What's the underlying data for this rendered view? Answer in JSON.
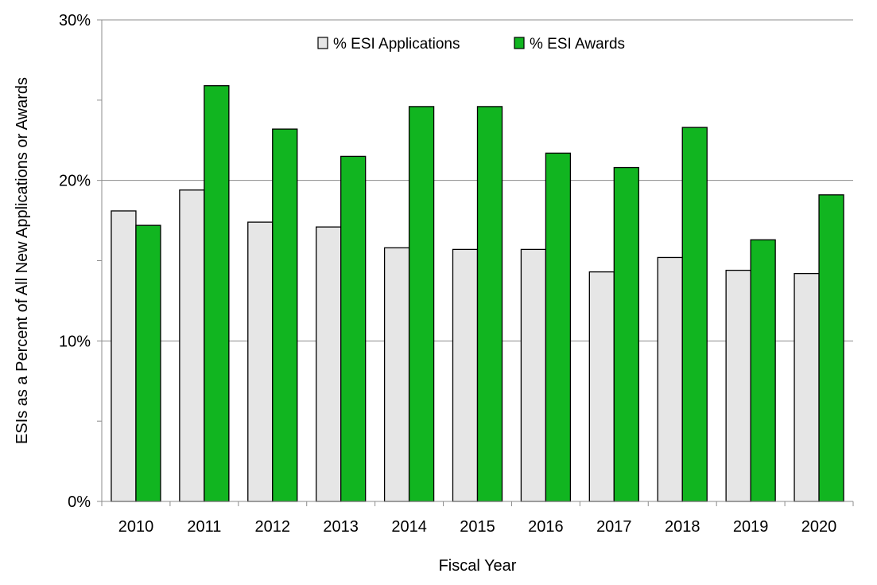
{
  "chart_data": {
    "type": "bar",
    "title": "",
    "xlabel": "Fiscal Year",
    "ylabel": "ESIs as a Percent of All New Applications or Awards",
    "categories": [
      "2010",
      "2011",
      "2012",
      "2013",
      "2014",
      "2015",
      "2016",
      "2017",
      "2018",
      "2019",
      "2020"
    ],
    "series": [
      {
        "name": "% ESI Applications",
        "color": "#e6e6e6",
        "values": [
          18.1,
          19.4,
          17.4,
          17.1,
          15.8,
          15.7,
          15.7,
          14.3,
          15.2,
          14.4,
          14.2
        ]
      },
      {
        "name": "% ESI Awards",
        "color": "#11b520",
        "values": [
          17.2,
          25.9,
          23.2,
          21.5,
          24.6,
          24.6,
          21.7,
          20.8,
          23.3,
          16.3,
          19.1
        ]
      }
    ],
    "ylim": [
      0,
      30
    ],
    "yticks": [
      0,
      10,
      20,
      30
    ],
    "ytick_labels": [
      "0%",
      "10%",
      "20%",
      "30%"
    ],
    "grid": true,
    "legend": "top-center"
  }
}
